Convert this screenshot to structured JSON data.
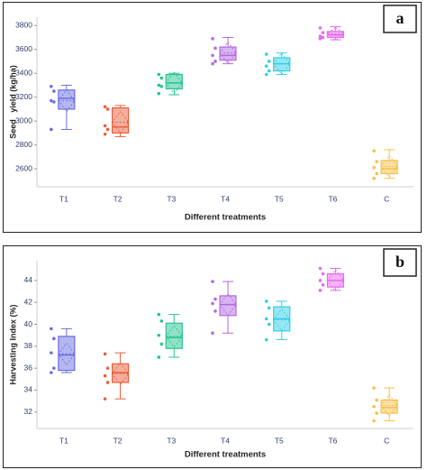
{
  "chart_data": [
    {
      "type": "box",
      "panel_label": "a",
      "ylabel": "Seed   yield (kg/ha)",
      "xlabel": "Different treatments",
      "categories": [
        "T1",
        "T2",
        "T3",
        "T4",
        "T5",
        "T6",
        "C"
      ],
      "colors": [
        "#6a6fe0",
        "#e8603c",
        "#26c48f",
        "#b36ae2",
        "#2fd0e8",
        "#e86af0",
        "#f7c04a"
      ],
      "ylim": [
        2450,
        3870
      ],
      "yticks": [
        2600,
        2800,
        3000,
        3200,
        3400,
        3600,
        3800
      ],
      "boxes": [
        {
          "min": 2930,
          "q1": 3100,
          "median": 3190,
          "q3": 3260,
          "max": 3300,
          "mean": 3170
        },
        {
          "min": 2870,
          "q1": 2900,
          "median": 2950,
          "q3": 3110,
          "max": 3130,
          "mean": 2990
        },
        {
          "min": 3220,
          "q1": 3270,
          "median": 3320,
          "q3": 3390,
          "max": 3400,
          "mean": 3320
        },
        {
          "min": 3480,
          "q1": 3510,
          "median": 3550,
          "q3": 3620,
          "max": 3700,
          "mean": 3570
        },
        {
          "min": 3390,
          "q1": 3420,
          "median": 3480,
          "q3": 3530,
          "max": 3570,
          "mean": 3480
        },
        {
          "min": 3680,
          "q1": 3700,
          "median": 3720,
          "q3": 3750,
          "max": 3790,
          "mean": 3730
        },
        {
          "min": 2520,
          "q1": 2560,
          "median": 2600,
          "q3": 2670,
          "max": 2760,
          "mean": 2620
        }
      ],
      "points": [
        [
          3290,
          3250,
          3170,
          3160,
          2930
        ],
        [
          3120,
          3100,
          2960,
          2930,
          2890
        ],
        [
          3390,
          3360,
          3300,
          3290,
          3230
        ],
        [
          3690,
          3610,
          3550,
          3500,
          3480
        ],
        [
          3560,
          3500,
          3460,
          3420,
          3390
        ],
        [
          3780,
          3740,
          3710,
          3700,
          3690
        ],
        [
          2750,
          2660,
          2610,
          2560,
          2520
        ]
      ]
    },
    {
      "type": "box",
      "panel_label": "b",
      "ylabel": "Harvesting Index (%)",
      "xlabel": "Different treatments",
      "categories": [
        "T1",
        "T2",
        "T3",
        "T4",
        "T5",
        "T6",
        "C"
      ],
      "colors": [
        "#6a6fe0",
        "#e8603c",
        "#26c48f",
        "#b36ae2",
        "#2fd0e8",
        "#e86af0",
        "#f7c04a"
      ],
      "ylim": [
        30.5,
        45.8
      ],
      "yticks": [
        32,
        34,
        36,
        38,
        40,
        42,
        44
      ],
      "boxes": [
        {
          "min": 35.6,
          "q1": 35.8,
          "median": 37.2,
          "q3": 38.9,
          "max": 39.6,
          "mean": 37.3
        },
        {
          "min": 33.2,
          "q1": 34.7,
          "median": 35.6,
          "q3": 36.4,
          "max": 37.4,
          "mean": 35.5
        },
        {
          "min": 37.0,
          "q1": 37.8,
          "median": 38.8,
          "q3": 40.1,
          "max": 40.9,
          "mean": 38.9
        },
        {
          "min": 39.2,
          "q1": 40.8,
          "median": 41.8,
          "q3": 42.6,
          "max": 43.9,
          "mean": 41.8
        },
        {
          "min": 38.6,
          "q1": 39.4,
          "median": 40.5,
          "q3": 41.6,
          "max": 42.1,
          "mean": 40.4
        },
        {
          "min": 43.1,
          "q1": 43.4,
          "median": 44.0,
          "q3": 44.6,
          "max": 45.1,
          "mean": 44.0
        },
        {
          "min": 31.2,
          "q1": 31.9,
          "median": 32.4,
          "q3": 33.1,
          "max": 34.2,
          "mean": 32.6
        }
      ],
      "points": [
        [
          39.6,
          38.7,
          37.4,
          36.0,
          35.6
        ],
        [
          37.3,
          36.0,
          35.3,
          34.7,
          33.2
        ],
        [
          40.9,
          40.3,
          39.0,
          38.2,
          37.0
        ],
        [
          43.9,
          42.3,
          41.9,
          41.2,
          39.2
        ],
        [
          42.1,
          41.5,
          40.5,
          40.0,
          38.6
        ],
        [
          45.1,
          44.6,
          44.0,
          43.6,
          43.1
        ],
        [
          34.2,
          33.1,
          32.5,
          31.9,
          31.2
        ]
      ]
    }
  ]
}
